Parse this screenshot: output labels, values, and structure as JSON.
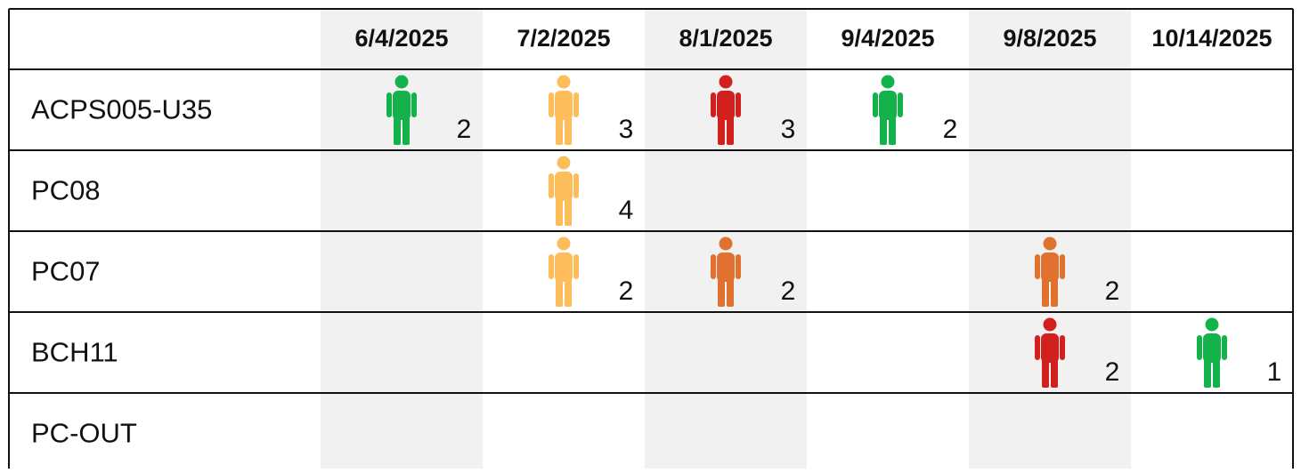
{
  "table": {
    "columns": [
      "6/4/2025",
      "7/2/2025",
      "8/1/2025",
      "9/4/2025",
      "9/8/2025",
      "10/14/2025"
    ],
    "rows": [
      {
        "label": "ACPS005-U35",
        "cells": [
          {
            "count": 2,
            "color": "#13b24b"
          },
          {
            "count": 3,
            "color": "#fdbd5b"
          },
          {
            "count": 3,
            "color": "#d2201f"
          },
          {
            "count": 2,
            "color": "#13b24b"
          },
          null,
          null
        ]
      },
      {
        "label": "PC08",
        "cells": [
          null,
          {
            "count": 4,
            "color": "#fdbd5b"
          },
          null,
          null,
          null,
          null
        ]
      },
      {
        "label": "PC07",
        "cells": [
          null,
          {
            "count": 2,
            "color": "#fdbd5b"
          },
          {
            "count": 2,
            "color": "#e0712f"
          },
          null,
          {
            "count": 2,
            "color": "#e0712f"
          },
          null
        ]
      },
      {
        "label": "BCH11",
        "cells": [
          null,
          null,
          null,
          null,
          {
            "count": 2,
            "color": "#d2201f"
          },
          {
            "count": 1,
            "color": "#13b24b"
          }
        ]
      },
      {
        "label": "PC-OUT",
        "cells": [
          null,
          null,
          null,
          null,
          null,
          null
        ]
      }
    ]
  }
}
